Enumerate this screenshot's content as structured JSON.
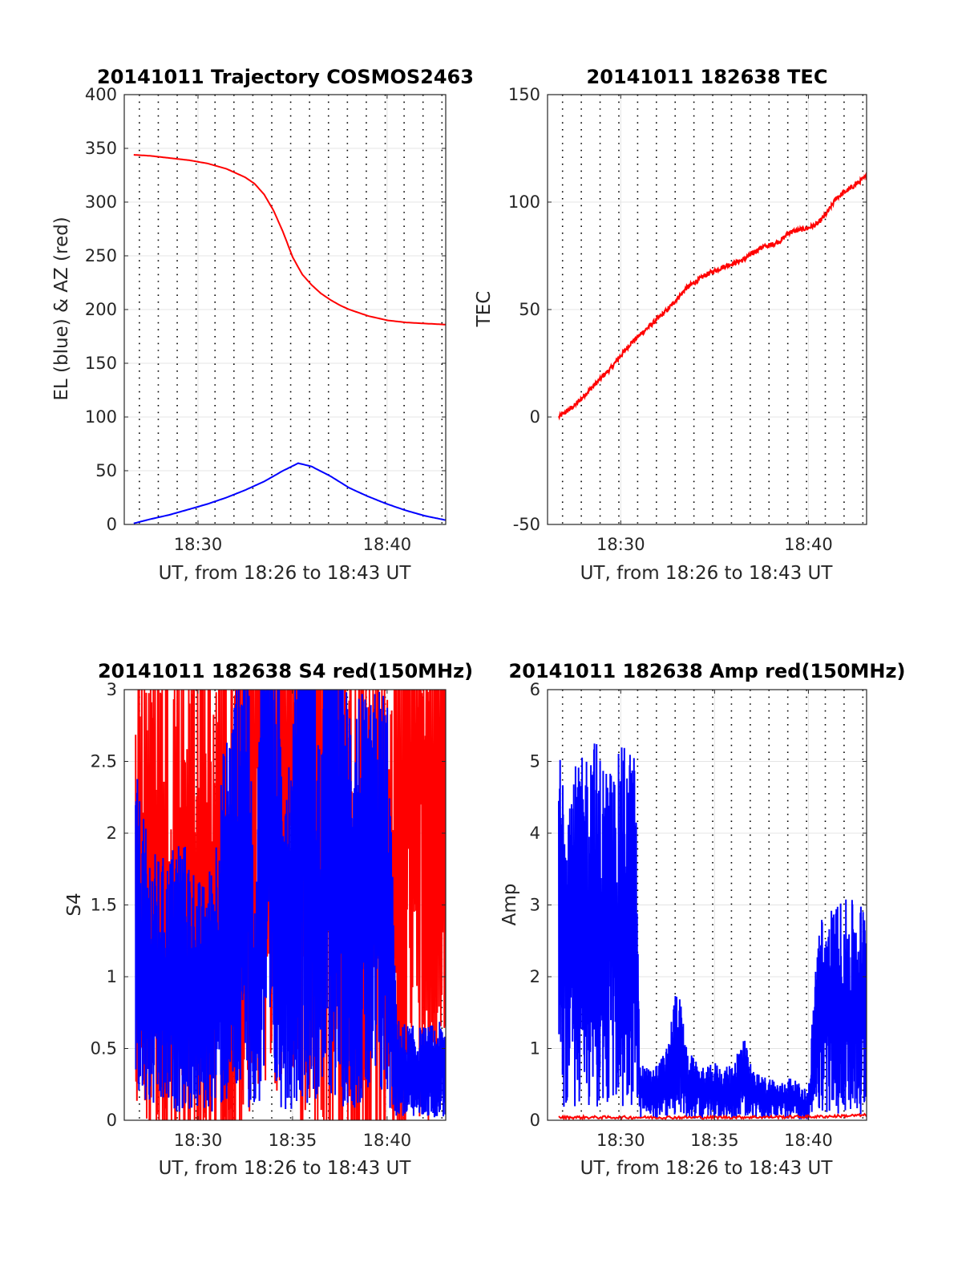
{
  "chart_data": [
    {
      "type": "line",
      "title": "20141011 Trajectory COSMOS2463",
      "xlabel": "UT, from 18:26 to 18:43 UT",
      "ylabel": "EL (blue) & AZ (red)",
      "x_unit": "minutes after 18:00 UT",
      "xlim": [
        26.1,
        43.1
      ],
      "ylim": [
        0,
        400
      ],
      "xticks": [
        30,
        40
      ],
      "xtick_labels": [
        "18:30",
        "18:40"
      ],
      "yticks": [
        0,
        50,
        100,
        150,
        200,
        250,
        300,
        350,
        400
      ],
      "ytick_labels": [
        "0",
        "50",
        "100",
        "150",
        "200",
        "250",
        "300",
        "350",
        "400"
      ],
      "dotted_vlines": [
        26.9,
        27.9,
        28.9,
        29.9,
        30.9,
        31.9,
        32.9,
        33.9,
        34.9,
        35.9,
        36.9,
        37.9,
        38.9,
        39.9,
        40.9,
        41.9,
        42.9
      ],
      "grid": true,
      "series": [
        {
          "color": "#ff0000",
          "style": "smooth",
          "x": [
            26.6,
            27.5,
            28.5,
            29.5,
            30.5,
            31.5,
            32.5,
            33.0,
            33.5,
            34.0,
            34.5,
            35.0,
            35.5,
            36.0,
            36.5,
            37.0,
            37.5,
            38.0,
            39.0,
            40.0,
            41.0,
            42.0,
            43.1
          ],
          "y": [
            344,
            343,
            341,
            339,
            336,
            331,
            323,
            317,
            307,
            292,
            272,
            249,
            233,
            223,
            215,
            209,
            204,
            200,
            194,
            190,
            188,
            187,
            186
          ]
        },
        {
          "color": "#0000ff",
          "style": "smooth",
          "x": [
            26.6,
            27.5,
            28.5,
            29.5,
            30.5,
            31.5,
            32.5,
            33.5,
            34.5,
            35.3,
            36.0,
            37.0,
            38.0,
            39.0,
            40.0,
            41.0,
            42.0,
            43.1
          ],
          "y": [
            1,
            5,
            9,
            14,
            19,
            25,
            32,
            40,
            50,
            57,
            54,
            45,
            34,
            26,
            19,
            13,
            8,
            4
          ]
        }
      ]
    },
    {
      "type": "line",
      "title": "20141011 182638 TEC",
      "xlabel": "UT, from 18:26 to 18:43 UT",
      "ylabel": "TEC",
      "x_unit": "minutes after 18:00 UT",
      "xlim": [
        26.1,
        43.1
      ],
      "ylim": [
        -50,
        150
      ],
      "xticks": [
        30,
        40
      ],
      "xtick_labels": [
        "18:30",
        "18:40"
      ],
      "yticks": [
        -50,
        0,
        50,
        100,
        150
      ],
      "ytick_labels": [
        "-50",
        "0",
        "50",
        "100",
        "150"
      ],
      "dotted_vlines": [
        26.9,
        27.9,
        28.9,
        29.9,
        30.9,
        31.9,
        32.9,
        33.9,
        34.9,
        35.9,
        36.9,
        37.9,
        38.9,
        39.9,
        40.9,
        41.9,
        42.9
      ],
      "grid": true,
      "series": [
        {
          "color": "#ff0000",
          "style": "noisy",
          "x": [
            26.7,
            27.5,
            28.5,
            29.5,
            30.5,
            31.5,
            32.5,
            33.5,
            34.5,
            35.5,
            36.5,
            37.0,
            37.5,
            38.0,
            38.5,
            39.0,
            39.5,
            40.0,
            40.5,
            41.0,
            41.5,
            42.0,
            42.5,
            43.1
          ],
          "y": [
            0,
            5,
            14,
            23,
            34,
            42,
            50,
            60,
            66,
            70,
            73,
            76,
            79,
            80,
            82,
            86,
            87,
            88,
            90,
            95,
            102,
            105,
            108,
            112
          ]
        }
      ]
    },
    {
      "type": "line",
      "title": "20141011 182638 S4 red(150MHz)",
      "xlabel": "UT, from 18:26 to 18:43 UT",
      "ylabel": "S4",
      "x_unit": "minutes after 18:00 UT",
      "xlim": [
        26.1,
        43.1
      ],
      "ylim": [
        0,
        3
      ],
      "xticks": [
        30,
        35,
        40
      ],
      "xtick_labels": [
        "18:30",
        "18:35",
        "18:40"
      ],
      "yticks": [
        0,
        0.5,
        1,
        1.5,
        2,
        2.5,
        3
      ],
      "ytick_labels": [
        "0",
        "0.5",
        "1",
        "1.5",
        "2",
        "2.5",
        "3"
      ],
      "dotted_vlines": [
        26.9,
        27.9,
        28.9,
        29.9,
        30.9,
        31.9,
        32.9,
        33.9,
        34.9,
        35.9,
        36.9,
        37.9,
        38.9,
        39.9,
        40.9,
        41.9,
        42.9
      ],
      "grid": true,
      "series": [
        {
          "color": "#ff0000",
          "style": "spiky",
          "x": [
            26.7,
            27.2,
            27.8,
            28.4,
            29.0,
            29.6,
            30.2,
            30.8,
            31.4,
            32.0,
            32.6,
            33.0,
            33.5,
            34.0,
            34.5,
            35.0,
            35.5,
            36.0,
            36.5,
            37.0,
            37.5,
            38.0,
            38.5,
            39.0,
            39.5,
            40.0,
            40.5,
            41.0,
            41.5,
            42.0,
            42.5,
            43.1
          ],
          "y": [
            1.5,
            1.5,
            1.5,
            1.5,
            1.5,
            1.5,
            1.5,
            1.5,
            1.5,
            1.5,
            1.6,
            2.5,
            2.6,
            2.5,
            2.6,
            2.2,
            2.2,
            2.4,
            2.4,
            2.0,
            1.5,
            1.5,
            1.5,
            1.5,
            1.5,
            1.5,
            1.8,
            2.2,
            2.5,
            2.5,
            2.5,
            2.6
          ]
        },
        {
          "color": "#0000ff",
          "style": "dense",
          "x": [
            26.7,
            27.2,
            27.8,
            28.4,
            29.0,
            29.6,
            30.2,
            30.8,
            31.4,
            32.0,
            32.6,
            33.0,
            33.5,
            34.0,
            34.5,
            35.0,
            35.5,
            36.0,
            36.5,
            37.0,
            37.5,
            38.0,
            38.5,
            39.0,
            39.5,
            40.0,
            40.5,
            41.0,
            41.5,
            42.0,
            42.5,
            43.1
          ],
          "y": [
            1.2,
            1.0,
            0.9,
            0.9,
            1.0,
            0.9,
            0.8,
            0.9,
            1.3,
            1.5,
            1.8,
            0.7,
            2.2,
            1.6,
            1.4,
            1.3,
            2.4,
            2.0,
            1.2,
            2.6,
            1.5,
            1.5,
            1.5,
            1.4,
            1.5,
            1.5,
            0.35,
            0.33,
            0.32,
            0.32,
            0.33,
            0.34
          ]
        }
      ]
    },
    {
      "type": "line",
      "title": "20141011 182638 Amp red(150MHz)",
      "xlabel": "UT, from 18:26 to 18:43 UT",
      "ylabel": "Amp",
      "x_unit": "minutes after 18:00 UT",
      "xlim": [
        26.1,
        43.1
      ],
      "ylim": [
        0,
        6
      ],
      "xticks": [
        30,
        35,
        40
      ],
      "xtick_labels": [
        "18:30",
        "18:35",
        "18:40"
      ],
      "yticks": [
        0,
        1,
        2,
        3,
        4,
        5,
        6
      ],
      "ytick_labels": [
        "0",
        "1",
        "2",
        "3",
        "4",
        "5",
        "6"
      ],
      "dotted_vlines": [
        26.9,
        27.9,
        28.9,
        29.9,
        30.9,
        31.9,
        32.9,
        33.9,
        34.9,
        35.9,
        36.9,
        37.9,
        38.9,
        39.9,
        40.9,
        41.9,
        42.9
      ],
      "grid": true,
      "series": [
        {
          "color": "#0000ff",
          "style": "dense",
          "x": [
            26.7,
            27.2,
            27.8,
            28.4,
            29.0,
            29.6,
            30.2,
            30.8,
            31.0,
            31.5,
            32.0,
            32.5,
            33.0,
            33.5,
            34.0,
            34.5,
            35.0,
            35.5,
            36.0,
            36.5,
            37.0,
            37.5,
            38.0,
            38.5,
            39.0,
            39.5,
            40.0,
            40.5,
            41.0,
            41.5,
            42.0,
            42.5,
            43.1
          ],
          "y": [
            2.6,
            2.5,
            2.4,
            2.7,
            2.5,
            2.4,
            2.6,
            2.5,
            0.4,
            0.35,
            0.4,
            0.5,
            1.0,
            0.5,
            0.4,
            0.35,
            0.4,
            0.35,
            0.4,
            0.6,
            0.35,
            0.3,
            0.3,
            0.25,
            0.3,
            0.25,
            0.2,
            1.4,
            1.4,
            1.5,
            1.5,
            1.5,
            1.5
          ]
        },
        {
          "color": "#ff0000",
          "style": "baseline",
          "x": [
            26.7,
            30.0,
            35.0,
            40.5,
            43.1
          ],
          "y": [
            0.02,
            0.02,
            0.02,
            0.03,
            0.05
          ]
        }
      ]
    }
  ]
}
